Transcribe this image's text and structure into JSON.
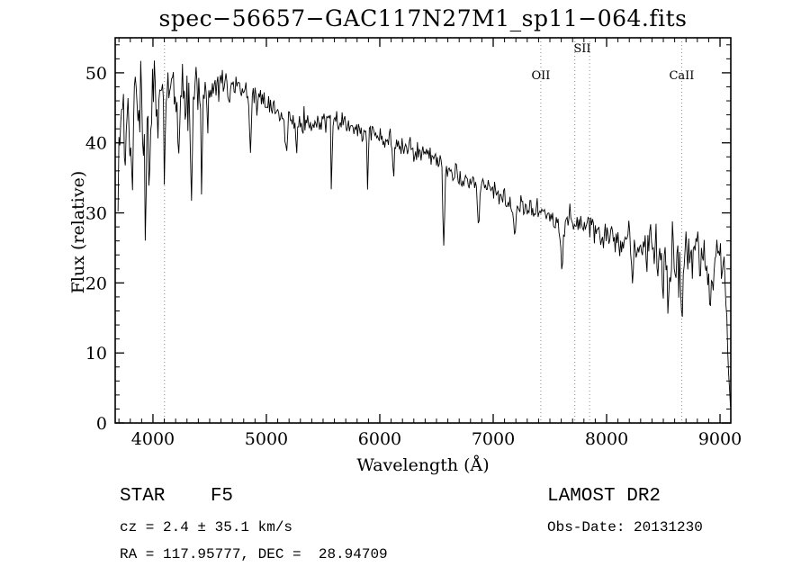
{
  "footer": {
    "class_line": "STAR    F5",
    "survey_line": "LAMOST DR2",
    "cz_line": "cz = 2.4 ± 35.1 km/s",
    "obs_line": "Obs-Date: 20131230",
    "radec_line": "RA = 117.95777, DEC =  28.94709"
  },
  "chart_data": {
    "type": "line",
    "title": "spec−56657−GAC117N27M1_sp11−064.fits",
    "xlabel": "Wavelength (Å)",
    "ylabel": "Flux (relative)",
    "xlim": [
      3667,
      9095
    ],
    "ylim": [
      0,
      55
    ],
    "x_major_ticks": [
      4000,
      5000,
      6000,
      7000,
      8000,
      9000
    ],
    "x_minor_step": 100,
    "y_major_ticks": [
      0,
      10,
      20,
      30,
      40,
      50
    ],
    "y_minor_step": 2,
    "grid": "dotted vertical lines at marked spectral features only",
    "legend": "none",
    "line_color": "#000000",
    "marker_line_color": "#8a8a8a",
    "line_markers": [
      {
        "label": "",
        "label_wavelength": 4102,
        "row": 2,
        "lines": [
          4102
        ]
      },
      {
        "label": "OII",
        "label_wavelength": 7420,
        "row": 2,
        "lines": [
          7420
        ]
      },
      {
        "label": "SII",
        "label_wavelength": 7785,
        "row": 1,
        "lines": [
          7720,
          7850
        ]
      },
      {
        "label": "CaII",
        "label_wavelength": 8662,
        "row": 2,
        "lines": [
          8662
        ]
      }
    ],
    "sample_range": [
      3692,
      9092
    ],
    "sample_step": 8,
    "noise_seed": 20131230,
    "continuum_anchors": [
      [
        3690,
        36
      ],
      [
        3720,
        42
      ],
      [
        3760,
        44
      ],
      [
        3820,
        45
      ],
      [
        3880,
        46
      ],
      [
        3940,
        46
      ],
      [
        4000,
        46
      ],
      [
        4080,
        47
      ],
      [
        4160,
        47.5
      ],
      [
        4240,
        47.5
      ],
      [
        4320,
        47
      ],
      [
        4400,
        47.5
      ],
      [
        4480,
        48
      ],
      [
        4560,
        48.5
      ],
      [
        4640,
        49
      ],
      [
        4700,
        49
      ],
      [
        4760,
        48.5
      ],
      [
        4820,
        47.5
      ],
      [
        4880,
        46.5
      ],
      [
        4940,
        46
      ],
      [
        5000,
        45.5
      ],
      [
        5080,
        44.5
      ],
      [
        5160,
        44
      ],
      [
        5240,
        43.5
      ],
      [
        5320,
        43
      ],
      [
        5400,
        43
      ],
      [
        5480,
        43
      ],
      [
        5560,
        43.5
      ],
      [
        5640,
        43
      ],
      [
        5720,
        42.5
      ],
      [
        5800,
        42
      ],
      [
        5880,
        41.5
      ],
      [
        5960,
        41
      ],
      [
        6040,
        40.2
      ],
      [
        6120,
        39.8
      ],
      [
        6200,
        39.3
      ],
      [
        6280,
        39
      ],
      [
        6360,
        38.6
      ],
      [
        6440,
        38.2
      ],
      [
        6520,
        37.4
      ],
      [
        6600,
        36.2
      ],
      [
        6680,
        35.2
      ],
      [
        6760,
        34.6
      ],
      [
        6840,
        34.2
      ],
      [
        6920,
        33.8
      ],
      [
        7000,
        33.2
      ],
      [
        7080,
        32.4
      ],
      [
        7160,
        31.6
      ],
      [
        7240,
        31
      ],
      [
        7320,
        30.6
      ],
      [
        7400,
        30.2
      ],
      [
        7480,
        29.8
      ],
      [
        7560,
        29.4
      ],
      [
        7640,
        29
      ],
      [
        7720,
        28.6
      ],
      [
        7800,
        28.2
      ],
      [
        7880,
        27.6
      ],
      [
        7960,
        27
      ],
      [
        8040,
        26.6
      ],
      [
        8120,
        26.2
      ],
      [
        8200,
        25.8
      ],
      [
        8280,
        25.3
      ],
      [
        8360,
        25
      ],
      [
        8440,
        24.6
      ],
      [
        8520,
        24.2
      ],
      [
        8600,
        24
      ],
      [
        8680,
        24
      ],
      [
        8760,
        23.6
      ],
      [
        8840,
        22.8
      ],
      [
        8920,
        22.6
      ],
      [
        8960,
        23.4
      ],
      [
        9000,
        24
      ],
      [
        9030,
        22
      ],
      [
        9055,
        16
      ],
      [
        9075,
        8
      ],
      [
        9092,
        1
      ]
    ],
    "noise_sigma_anchors": [
      [
        3690,
        4.2
      ],
      [
        3760,
        3.6
      ],
      [
        3840,
        3.0
      ],
      [
        3920,
        2.8
      ],
      [
        4000,
        2.6
      ],
      [
        4100,
        2.4
      ],
      [
        4200,
        2.2
      ],
      [
        4350,
        1.8
      ],
      [
        4500,
        1.4
      ],
      [
        4650,
        1.2
      ],
      [
        4800,
        1.1
      ],
      [
        5000,
        0.95
      ],
      [
        5300,
        0.85
      ],
      [
        5600,
        0.8
      ],
      [
        6000,
        0.75
      ],
      [
        6400,
        0.7
      ],
      [
        6800,
        0.75
      ],
      [
        7200,
        0.8
      ],
      [
        7600,
        0.85
      ],
      [
        7900,
        1.0
      ],
      [
        8150,
        1.2
      ],
      [
        8350,
        1.6
      ],
      [
        8500,
        2.4
      ],
      [
        8650,
        2.6
      ],
      [
        8800,
        2.1
      ],
      [
        8950,
        1.9
      ],
      [
        9092,
        1.2
      ]
    ],
    "absorption_features": [
      [
        3820,
        12,
        6
      ],
      [
        3933,
        20,
        7
      ],
      [
        3968,
        15,
        7
      ],
      [
        4045,
        7,
        6
      ],
      [
        4102,
        13,
        7
      ],
      [
        4226,
        9,
        6
      ],
      [
        4340,
        13,
        7
      ],
      [
        4430,
        14,
        5
      ],
      [
        4481,
        6,
        6
      ],
      [
        4668,
        5,
        6
      ],
      [
        4861,
        10,
        7
      ],
      [
        5175,
        6,
        8
      ],
      [
        5269,
        5,
        7
      ],
      [
        5575,
        11,
        5
      ],
      [
        5893,
        7,
        6
      ],
      [
        6122,
        4,
        6
      ],
      [
        6563,
        12,
        7
      ],
      [
        6870,
        5,
        10
      ],
      [
        7190,
        4,
        12
      ],
      [
        7605,
        7,
        14
      ],
      [
        8230,
        4,
        10
      ],
      [
        8498,
        5,
        7
      ],
      [
        8542,
        8,
        7
      ],
      [
        8662,
        8,
        7
      ],
      [
        8920,
        6,
        10
      ]
    ]
  }
}
